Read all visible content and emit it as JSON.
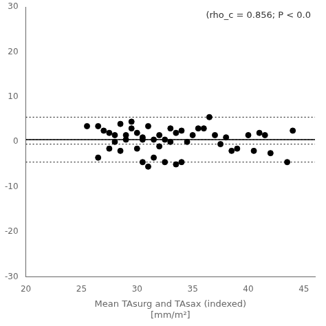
{
  "chart_data": {
    "type": "scatter",
    "xlabel": "Mean TAsurg and TAsax (indexed)\n[mm/m²]",
    "annotation": "(rho_c = 0.856; P < 0.0",
    "x": [
      25.5,
      26.5,
      26.5,
      27.0,
      27.5,
      27.5,
      28.0,
      28.0,
      28.5,
      28.5,
      29.0,
      29.0,
      29.5,
      29.5,
      30.0,
      30.0,
      30.5,
      30.5,
      30.5,
      31.0,
      31.0,
      31.5,
      31.5,
      32.0,
      32.0,
      32.5,
      32.5,
      33.0,
      33.0,
      33.5,
      33.5,
      34.0,
      34.0,
      34.5,
      35.0,
      35.5,
      36.0,
      36.5,
      37.0,
      37.5,
      38.0,
      38.5,
      39.0,
      40.0,
      40.5,
      41.0,
      41.5,
      42.0,
      43.5,
      44.0
    ],
    "values": [
      3.5,
      -3.5,
      3.5,
      2.5,
      2.0,
      -1.5,
      1.5,
      0.0,
      -2.0,
      4.0,
      0.5,
      1.5,
      3.0,
      4.5,
      -1.5,
      2.0,
      1.0,
      -4.5,
      0.5,
      -5.5,
      3.5,
      0.5,
      -3.5,
      -1.0,
      1.5,
      -4.5,
      0.5,
      0.0,
      3.0,
      -5.0,
      2.0,
      2.5,
      -4.5,
      0.0,
      1.5,
      3.0,
      3.0,
      5.5,
      1.5,
      -0.5,
      1.0,
      -2.0,
      -1.5,
      1.5,
      -2.0,
      2.0,
      1.5,
      -2.5,
      -4.5,
      2.5
    ],
    "color": "#000000",
    "reference_lines": [
      {
        "y": 0.5,
        "line_style": "solid",
        "color": "#000000"
      },
      {
        "y": 5.5,
        "line_style": "dotted",
        "color": "#000000"
      },
      {
        "y": -4.5,
        "line_style": "dotted",
        "color": "#000000"
      },
      {
        "y": 0.5,
        "line_style": "dotted",
        "color": "#000000"
      },
      {
        "y": -0.5,
        "line_style": "dotted",
        "color": "#000000"
      }
    ],
    "xlim": [
      20,
      46
    ],
    "ylim": [
      -30,
      30
    ],
    "xticks": [
      20,
      25,
      30,
      35,
      40,
      45
    ],
    "yticks": [
      -30,
      -20,
      -10,
      0,
      10,
      20,
      30
    ],
    "grid": false
  }
}
